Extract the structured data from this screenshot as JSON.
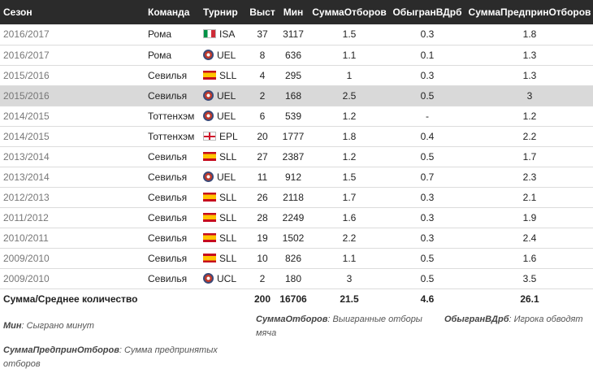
{
  "headers": {
    "season": "Сезон",
    "team": "Команда",
    "tournament": "Турнир",
    "apps": "Выст",
    "mins": "Мин",
    "tackles": "СуммаОтборов",
    "dribbled": "ОбыгранВДрб",
    "attempts": "СуммаПредпринОтборов"
  },
  "rows": [
    {
      "season": "2016/2017",
      "team": "Рома",
      "flag": "it",
      "tournament": "ISA",
      "apps": "37",
      "mins": "3117",
      "tackles": "1.5",
      "dribbled": "0.3",
      "attempts": "1.8"
    },
    {
      "season": "2016/2017",
      "team": "Рома",
      "flag": "eu",
      "tournament": "UEL",
      "apps": "8",
      "mins": "636",
      "tackles": "1.1",
      "dribbled": "0.1",
      "attempts": "1.3"
    },
    {
      "season": "2015/2016",
      "team": "Севилья",
      "flag": "es",
      "tournament": "SLL",
      "apps": "4",
      "mins": "295",
      "tackles": "1",
      "dribbled": "0.3",
      "attempts": "1.3"
    },
    {
      "season": "2015/2016",
      "team": "Севилья",
      "flag": "eu",
      "tournament": "UEL",
      "apps": "2",
      "mins": "168",
      "tackles": "2.5",
      "dribbled": "0.5",
      "attempts": "3"
    },
    {
      "season": "2014/2015",
      "team": "Тоттенхэм",
      "flag": "eu",
      "tournament": "UEL",
      "apps": "6",
      "mins": "539",
      "tackles": "1.2",
      "dribbled": "-",
      "attempts": "1.2"
    },
    {
      "season": "2014/2015",
      "team": "Тоттенхэм",
      "flag": "en",
      "tournament": "EPL",
      "apps": "20",
      "mins": "1777",
      "tackles": "1.8",
      "dribbled": "0.4",
      "attempts": "2.2"
    },
    {
      "season": "2013/2014",
      "team": "Севилья",
      "flag": "es",
      "tournament": "SLL",
      "apps": "27",
      "mins": "2387",
      "tackles": "1.2",
      "dribbled": "0.5",
      "attempts": "1.7"
    },
    {
      "season": "2013/2014",
      "team": "Севилья",
      "flag": "eu",
      "tournament": "UEL",
      "apps": "11",
      "mins": "912",
      "tackles": "1.5",
      "dribbled": "0.7",
      "attempts": "2.3"
    },
    {
      "season": "2012/2013",
      "team": "Севилья",
      "flag": "es",
      "tournament": "SLL",
      "apps": "26",
      "mins": "2118",
      "tackles": "1.7",
      "dribbled": "0.3",
      "attempts": "2.1"
    },
    {
      "season": "2011/2012",
      "team": "Севилья",
      "flag": "es",
      "tournament": "SLL",
      "apps": "28",
      "mins": "2249",
      "tackles": "1.6",
      "dribbled": "0.3",
      "attempts": "1.9"
    },
    {
      "season": "2010/2011",
      "team": "Севилья",
      "flag": "es",
      "tournament": "SLL",
      "apps": "19",
      "mins": "1502",
      "tackles": "2.2",
      "dribbled": "0.3",
      "attempts": "2.4"
    },
    {
      "season": "2009/2010",
      "team": "Севилья",
      "flag": "es",
      "tournament": "SLL",
      "apps": "10",
      "mins": "826",
      "tackles": "1.1",
      "dribbled": "0.5",
      "attempts": "1.6"
    },
    {
      "season": "2009/2010",
      "team": "Севилья",
      "flag": "eu",
      "tournament": "UCL",
      "apps": "2",
      "mins": "180",
      "tackles": "3",
      "dribbled": "0.5",
      "attempts": "3.5"
    }
  ],
  "highlighted_row": 3,
  "total": {
    "label": "Сумма/Среднее количество",
    "apps": "200",
    "mins": "16706",
    "tackles": "21.5",
    "dribbled": "4.6",
    "attempts": "26.1"
  },
  "legend": {
    "mins_key": "Мин",
    "mins_desc": ": Сыграно минут",
    "tackles_key": "СуммаОтборов",
    "tackles_desc": ": Выигранные отборы мяча",
    "dribbled_key": "ОбыгранВДрб",
    "dribbled_desc": ": Игрока обводят",
    "attempts_key": "СуммаПредпринОтборов",
    "attempts_desc": ": Сумма предпринятых отборов"
  },
  "colors": {
    "header_bg": "#2b2b2b",
    "highlight_bg": "#d9d9d9"
  }
}
